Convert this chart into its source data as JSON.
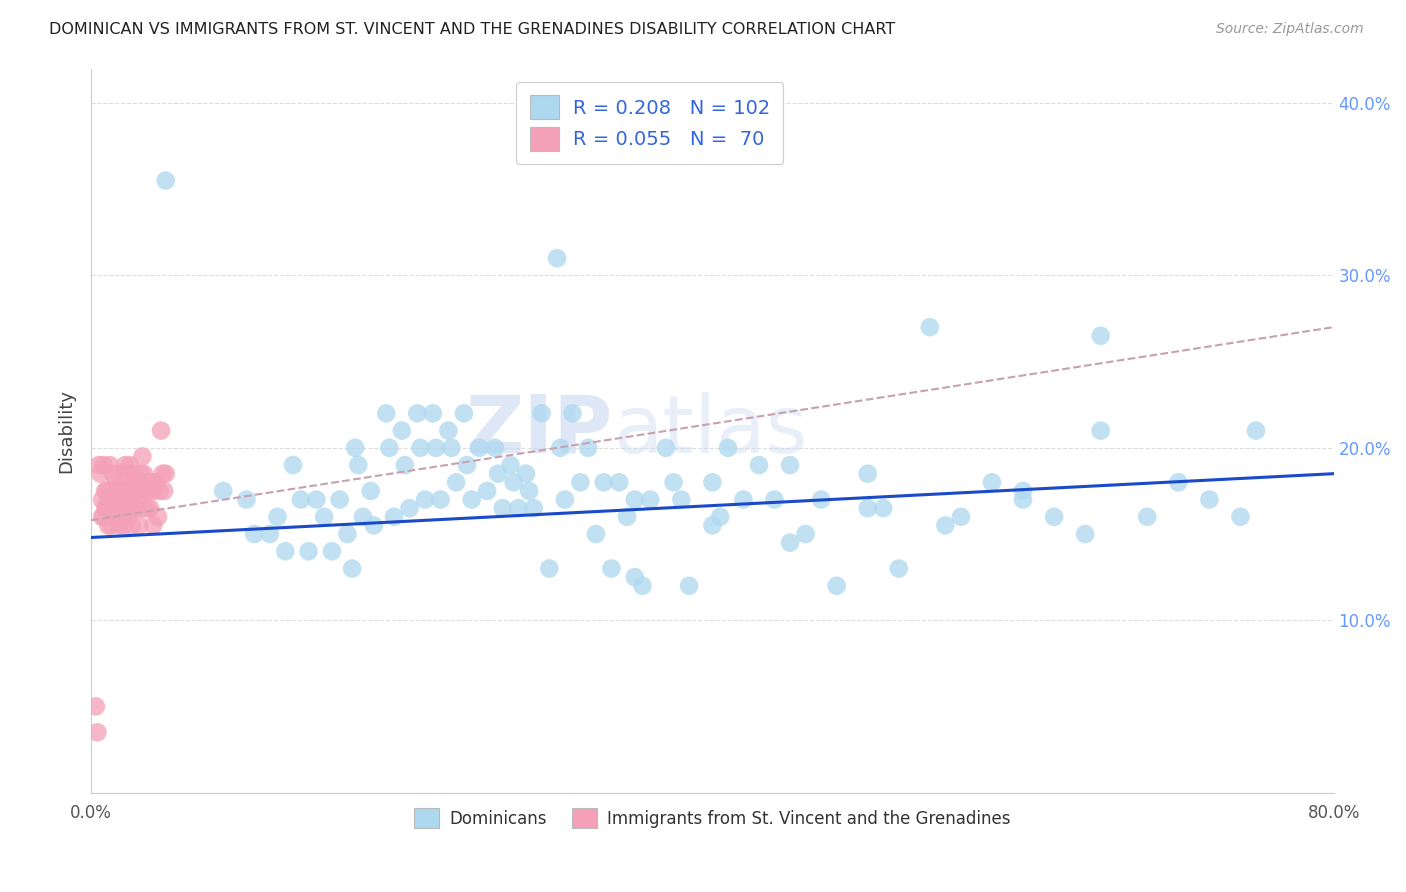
{
  "title": "DOMINICAN VS IMMIGRANTS FROM ST. VINCENT AND THE GRENADINES DISABILITY CORRELATION CHART",
  "source": "Source: ZipAtlas.com",
  "ylabel": "Disability",
  "xlim": [
    0.0,
    0.8
  ],
  "ylim": [
    0.0,
    0.42
  ],
  "legend_R1": "0.208",
  "legend_N1": "102",
  "legend_R2": "0.055",
  "legend_N2": "70",
  "blue_color": "#ADD8F0",
  "pink_color": "#F4A0B8",
  "blue_line_color": "#1A4AC8",
  "pink_line_color": "#C8A0B0",
  "grid_color": "#DDDDDD",
  "blue_scatter_x": [
    0.048,
    0.085,
    0.1,
    0.105,
    0.115,
    0.12,
    0.125,
    0.13,
    0.135,
    0.14,
    0.145,
    0.15,
    0.155,
    0.16,
    0.165,
    0.168,
    0.17,
    0.172,
    0.175,
    0.18,
    0.182,
    0.19,
    0.192,
    0.195,
    0.2,
    0.202,
    0.205,
    0.21,
    0.212,
    0.215,
    0.22,
    0.222,
    0.225,
    0.23,
    0.232,
    0.235,
    0.24,
    0.242,
    0.245,
    0.25,
    0.255,
    0.26,
    0.262,
    0.265,
    0.27,
    0.272,
    0.275,
    0.28,
    0.282,
    0.285,
    0.29,
    0.295,
    0.3,
    0.302,
    0.305,
    0.31,
    0.315,
    0.32,
    0.325,
    0.33,
    0.335,
    0.34,
    0.345,
    0.35,
    0.355,
    0.36,
    0.37,
    0.375,
    0.38,
    0.385,
    0.4,
    0.405,
    0.41,
    0.42,
    0.43,
    0.44,
    0.45,
    0.46,
    0.47,
    0.48,
    0.5,
    0.51,
    0.52,
    0.54,
    0.56,
    0.58,
    0.6,
    0.62,
    0.64,
    0.65,
    0.68,
    0.7,
    0.72,
    0.74,
    0.75,
    0.6,
    0.55,
    0.5,
    0.45,
    0.4,
    0.35,
    0.65
  ],
  "blue_scatter_y": [
    0.355,
    0.175,
    0.17,
    0.15,
    0.15,
    0.16,
    0.14,
    0.19,
    0.17,
    0.14,
    0.17,
    0.16,
    0.14,
    0.17,
    0.15,
    0.13,
    0.2,
    0.19,
    0.16,
    0.175,
    0.155,
    0.22,
    0.2,
    0.16,
    0.21,
    0.19,
    0.165,
    0.22,
    0.2,
    0.17,
    0.22,
    0.2,
    0.17,
    0.21,
    0.2,
    0.18,
    0.22,
    0.19,
    0.17,
    0.2,
    0.175,
    0.2,
    0.185,
    0.165,
    0.19,
    0.18,
    0.165,
    0.185,
    0.175,
    0.165,
    0.22,
    0.13,
    0.31,
    0.2,
    0.17,
    0.22,
    0.18,
    0.2,
    0.15,
    0.18,
    0.13,
    0.18,
    0.16,
    0.17,
    0.12,
    0.17,
    0.2,
    0.18,
    0.17,
    0.12,
    0.18,
    0.16,
    0.2,
    0.17,
    0.19,
    0.17,
    0.19,
    0.15,
    0.17,
    0.12,
    0.185,
    0.165,
    0.13,
    0.27,
    0.16,
    0.18,
    0.17,
    0.16,
    0.15,
    0.21,
    0.16,
    0.18,
    0.17,
    0.16,
    0.21,
    0.175,
    0.155,
    0.165,
    0.145,
    0.155,
    0.125,
    0.265
  ],
  "pink_scatter_x": [
    0.004,
    0.005,
    0.006,
    0.007,
    0.007,
    0.008,
    0.008,
    0.009,
    0.009,
    0.01,
    0.01,
    0.011,
    0.011,
    0.012,
    0.012,
    0.013,
    0.013,
    0.014,
    0.014,
    0.015,
    0.015,
    0.016,
    0.016,
    0.017,
    0.017,
    0.018,
    0.018,
    0.019,
    0.019,
    0.02,
    0.02,
    0.021,
    0.021,
    0.022,
    0.022,
    0.023,
    0.023,
    0.024,
    0.024,
    0.025,
    0.025,
    0.026,
    0.026,
    0.027,
    0.027,
    0.028,
    0.03,
    0.03,
    0.031,
    0.031,
    0.032,
    0.033,
    0.034,
    0.034,
    0.035,
    0.036,
    0.036,
    0.037,
    0.038,
    0.039,
    0.04,
    0.04,
    0.042,
    0.043,
    0.044,
    0.045,
    0.046,
    0.047,
    0.048,
    0.003
  ],
  "pink_scatter_y": [
    0.035,
    0.19,
    0.185,
    0.17,
    0.16,
    0.19,
    0.16,
    0.175,
    0.165,
    0.175,
    0.165,
    0.17,
    0.155,
    0.19,
    0.175,
    0.17,
    0.155,
    0.185,
    0.17,
    0.175,
    0.165,
    0.18,
    0.165,
    0.175,
    0.165,
    0.17,
    0.155,
    0.175,
    0.16,
    0.185,
    0.165,
    0.17,
    0.155,
    0.19,
    0.175,
    0.185,
    0.17,
    0.175,
    0.16,
    0.19,
    0.175,
    0.17,
    0.155,
    0.185,
    0.165,
    0.175,
    0.18,
    0.165,
    0.175,
    0.155,
    0.185,
    0.195,
    0.185,
    0.165,
    0.175,
    0.18,
    0.165,
    0.175,
    0.165,
    0.18,
    0.175,
    0.155,
    0.18,
    0.16,
    0.175,
    0.21,
    0.185,
    0.175,
    0.185,
    0.05
  ],
  "blue_trend_x": [
    0.0,
    0.8
  ],
  "blue_trend_y": [
    0.148,
    0.185
  ],
  "pink_trend_x": [
    0.0,
    0.8
  ],
  "pink_trend_y": [
    0.158,
    0.27
  ]
}
